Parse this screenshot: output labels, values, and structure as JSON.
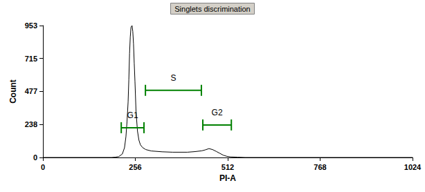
{
  "chart_data": {
    "type": "line",
    "title": "Singlets discrimination",
    "x_label": "PI-A",
    "y_label": "Count",
    "color": "#000000",
    "x": [
      0,
      190,
      200,
      210,
      220,
      226,
      230,
      233,
      236,
      238,
      240,
      242,
      244,
      246,
      247,
      249,
      251,
      253,
      255,
      258,
      262,
      266,
      270,
      276,
      285,
      300,
      330,
      360,
      400,
      420,
      440,
      450,
      460,
      470,
      480,
      490,
      500,
      510,
      520,
      540,
      560,
      1024
    ],
    "values": [
      0,
      0,
      2,
      6,
      25,
      70,
      150,
      260,
      400,
      560,
      750,
      870,
      940,
      950,
      953,
      910,
      820,
      680,
      550,
      330,
      190,
      125,
      92,
      72,
      57,
      47,
      41,
      38,
      38,
      42,
      48,
      55,
      64,
      57,
      44,
      30,
      16,
      8,
      4,
      2,
      0,
      0
    ],
    "xlim": [
      0,
      1024
    ],
    "xticks": [
      0,
      256,
      512,
      768,
      1024
    ],
    "ylim": [
      0,
      953
    ],
    "yticks": [
      0,
      238,
      477,
      715,
      953
    ],
    "grid": false,
    "gates": [
      {
        "label": "G1",
        "x": [
          217,
          280
        ],
        "y": 215,
        "color": "#008000"
      },
      {
        "label": "S",
        "x": [
          284,
          439
        ],
        "y": 485,
        "color": "#008000"
      },
      {
        "label": "G2",
        "x": [
          443,
          522
        ],
        "y": 235,
        "color": "#008000"
      }
    ]
  }
}
